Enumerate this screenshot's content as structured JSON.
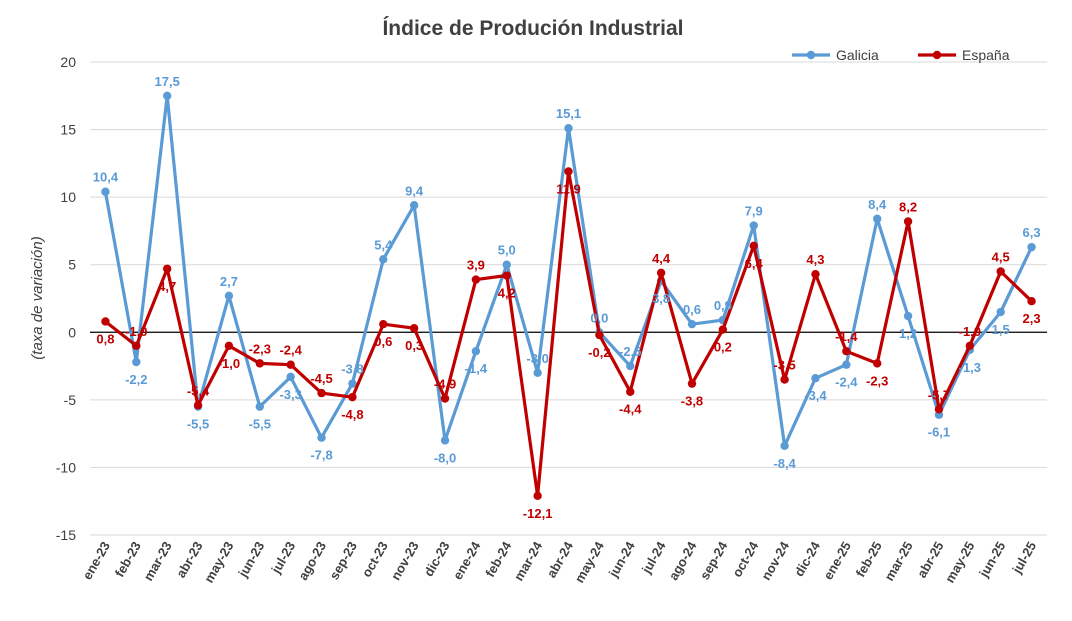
{
  "chart_data": {
    "type": "line",
    "title": "Índice de Produción Industrial",
    "xlabel": "",
    "ylabel": "(taxa de variación)",
    "ylim": [
      -15,
      20
    ],
    "yticks": [
      20,
      15,
      10,
      5,
      0,
      -5,
      -10,
      -15
    ],
    "grid": true,
    "legend_position": "top-right",
    "categories": [
      "ene-23",
      "feb-23",
      "mar-23",
      "abr-23",
      "may-23",
      "jun-23",
      "jul-23",
      "ago-23",
      "sep-23",
      "oct-23",
      "nov-23",
      "dic-23",
      "ene-24",
      "feb-24",
      "mar-24",
      "abr-24",
      "may-24",
      "jun-24",
      "jul-24",
      "ago-24",
      "sep-24",
      "oct-24",
      "nov-24",
      "dic-24",
      "ene-25",
      "feb-25",
      "mar-25",
      "abr-25",
      "may-25",
      "jun-25",
      "jul-25"
    ],
    "series": [
      {
        "name": "Galicia",
        "color": "#5B9BD5",
        "values": [
          10.4,
          -2.2,
          17.5,
          -5.5,
          2.7,
          -5.5,
          -3.3,
          -7.8,
          -3.8,
          5.4,
          9.4,
          -8.0,
          -1.4,
          5.0,
          -3.0,
          15.1,
          0.0,
          -2.5,
          3.8,
          0.6,
          0.9,
          7.9,
          -8.4,
          -3.4,
          -2.4,
          8.4,
          1.2,
          -6.1,
          -1.3,
          1.5,
          6.3
        ],
        "labels": [
          "10,4",
          "-2,2",
          "17,5",
          "-5,5",
          "2,7",
          "-5,5",
          "-3,3",
          "-7,8",
          "-3,8",
          "5,4",
          "9,4",
          "-8,0",
          "-1,4",
          "5,0",
          "-3,0",
          "15,1",
          "0,0",
          "-2,5",
          "3,8",
          "0,6",
          "0,9",
          "7,9",
          "-8,4",
          "-3,4",
          "-2,4",
          "8,4",
          "1,2",
          "-6,1",
          "-1,3",
          "1,5",
          "6,3"
        ]
      },
      {
        "name": "España",
        "color": "#C00000",
        "values": [
          0.8,
          -1.0,
          4.7,
          -5.4,
          -1.0,
          -2.3,
          -2.4,
          -4.5,
          -4.8,
          0.6,
          0.3,
          -4.9,
          3.9,
          4.2,
          -12.1,
          11.9,
          -0.2,
          -4.4,
          4.4,
          -3.8,
          0.2,
          6.4,
          -3.5,
          4.3,
          -1.4,
          -2.3,
          8.2,
          -5.7,
          -1.0,
          4.5,
          2.3
        ],
        "labels": [
          "0,8",
          "-1,0",
          "4,7",
          "-5,4",
          "-1,0",
          "-2,3",
          "-2,4",
          "-4,5",
          "-4,8",
          "0,6",
          "0,3",
          "-4,9",
          "3,9",
          "4,2",
          "-12,1",
          "11,9",
          "-0,2",
          "-4,4",
          "4,4",
          "-3,8",
          "0,2",
          "6,4",
          "-3,5",
          "4,3",
          "-1,4",
          "-2,3",
          "8,2",
          "-5,7",
          "-1,0",
          "4,5",
          "2,3"
        ]
      }
    ]
  }
}
